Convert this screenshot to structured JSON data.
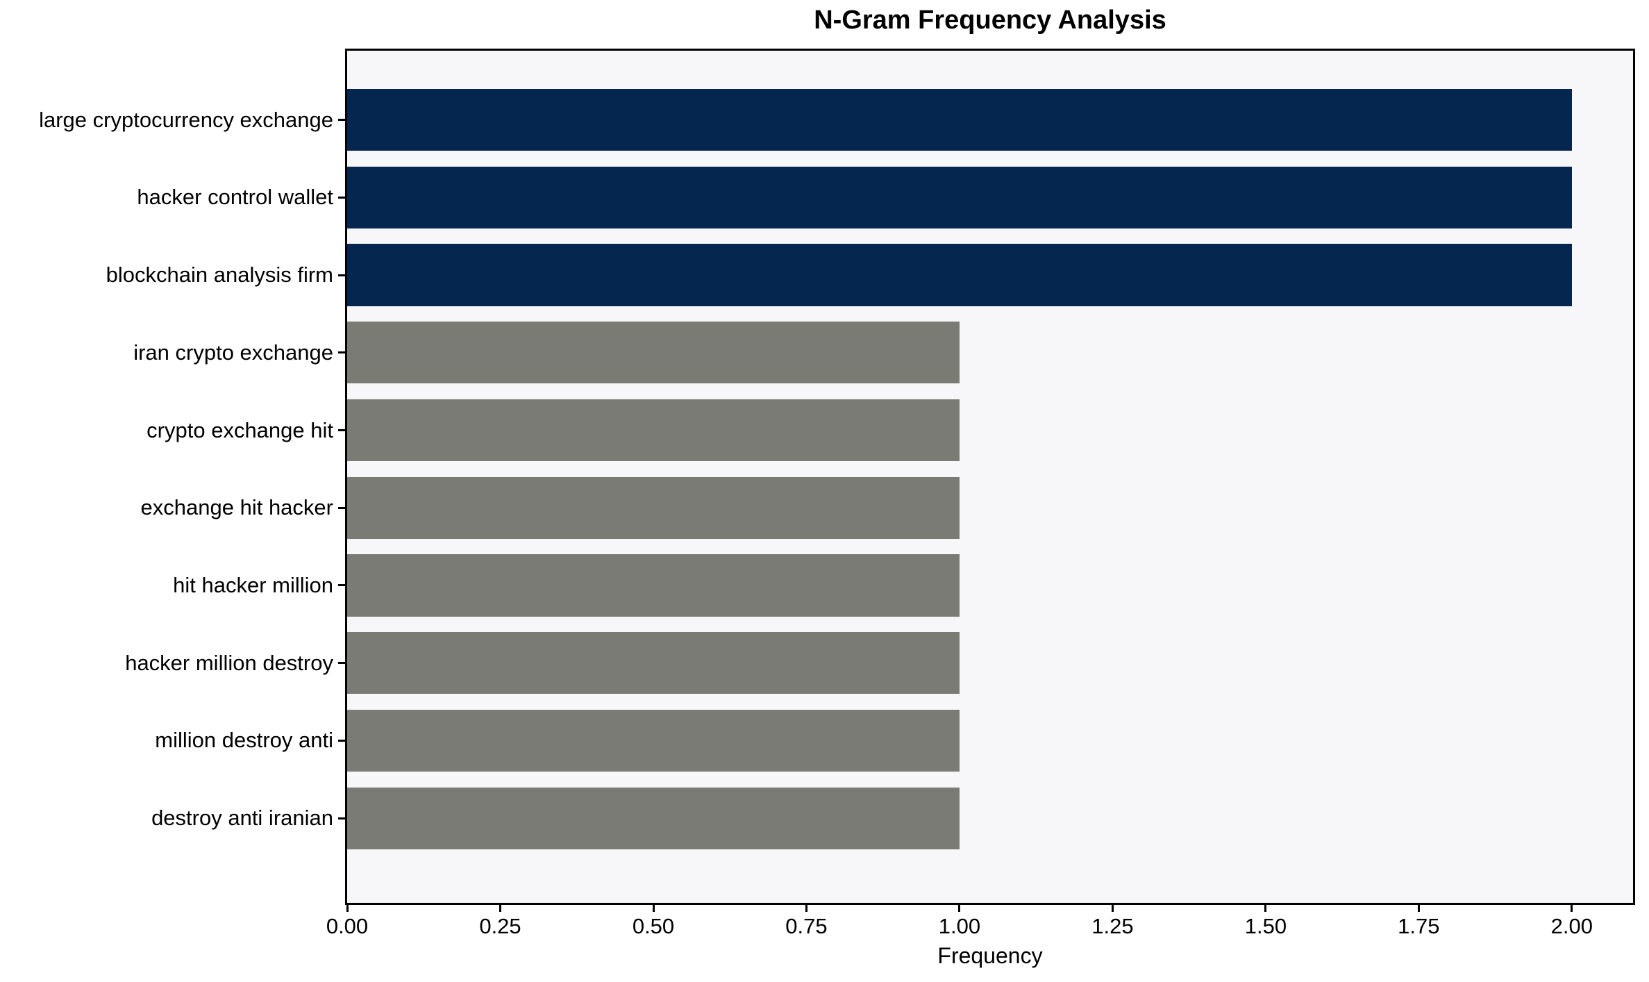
{
  "chart_data": {
    "type": "bar",
    "orientation": "horizontal",
    "title": "N-Gram Frequency Analysis",
    "xlabel": "Frequency",
    "ylabel": "",
    "categories": [
      "large cryptocurrency exchange",
      "hacker control wallet",
      "blockchain analysis firm",
      "iran crypto exchange",
      "crypto exchange hit",
      "exchange hit hacker",
      "hit hacker million",
      "hacker million destroy",
      "million destroy anti",
      "destroy anti iranian"
    ],
    "values": [
      2,
      2,
      2,
      1,
      1,
      1,
      1,
      1,
      1,
      1
    ],
    "bar_colors": [
      "#04264f",
      "#04264f",
      "#04264f",
      "#7b7b76",
      "#7b7b76",
      "#7b7b76",
      "#7b7b76",
      "#7b7b76",
      "#7b7b76",
      "#7b7b76"
    ],
    "xlim": [
      0,
      2.1
    ],
    "xtick_labels": [
      "0.00",
      "0.25",
      "0.50",
      "0.75",
      "1.00",
      "1.25",
      "1.50",
      "1.75",
      "2.00"
    ],
    "xtick_values": [
      0,
      0.25,
      0.5,
      0.75,
      1.0,
      1.25,
      1.5,
      1.75,
      2.0
    ],
    "grid": false,
    "legend": "none",
    "bar_band_fraction": 0.8,
    "axis_margin_fraction": 0.49,
    "colors": {
      "frequency_2_bar": "#04264f",
      "frequency_1_bar": "#7b7b76",
      "plot_background": "#f7f7f9",
      "figure_background": "#ffffff",
      "spine": "#000000",
      "text": "#000000"
    }
  }
}
